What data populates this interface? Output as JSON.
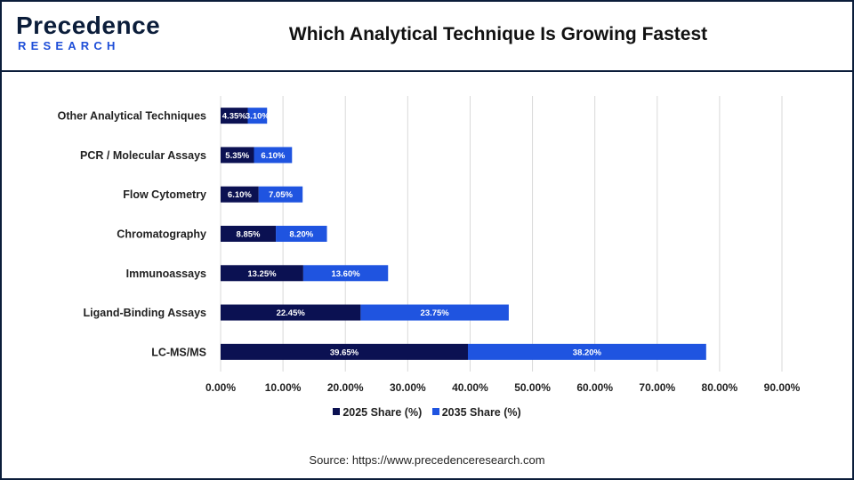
{
  "header": {
    "logo_main": "Precedence",
    "logo_sub": "RESEARCH",
    "title": "Which Analytical Technique Is Growing Fastest"
  },
  "source": "Source: https://www.precedenceresearch.com",
  "colors": {
    "series_2025": "#0b1152",
    "series_2035": "#1f54e0",
    "grid": "#d9d9d9",
    "border": "#0b1d3a"
  },
  "chart_data": {
    "type": "bar",
    "orientation": "horizontal",
    "stacked": true,
    "title": "Which Analytical Technique Is Growing Fastest",
    "categories": [
      "Other Analytical Techniques",
      "PCR / Molecular Assays",
      "Flow Cytometry",
      "Chromatography",
      "Immunoassays",
      "Ligand-Binding Assays",
      "LC-MS/MS"
    ],
    "series": [
      {
        "name": "2025 Share (%)",
        "values": [
          4.35,
          5.35,
          6.1,
          8.85,
          13.25,
          22.45,
          39.65
        ],
        "labels": [
          "4.35%",
          "5.35%",
          "6.10%",
          "8.85%",
          "13.25%",
          "22.45%",
          "39.65%"
        ]
      },
      {
        "name": "2035 Share (%)",
        "values": [
          3.1,
          6.1,
          7.05,
          8.2,
          13.6,
          23.75,
          38.2
        ],
        "labels": [
          "3.10%",
          "6.10%",
          "7.05%",
          "8.20%",
          "13.60%",
          "23.75%",
          "38.20%"
        ]
      }
    ],
    "xlim": [
      0,
      90
    ],
    "xticks": [
      "0.00%",
      "10.00%",
      "20.00%",
      "30.00%",
      "40.00%",
      "50.00%",
      "60.00%",
      "70.00%",
      "80.00%",
      "90.00%"
    ],
    "grid": true,
    "legend_position": "bottom"
  }
}
